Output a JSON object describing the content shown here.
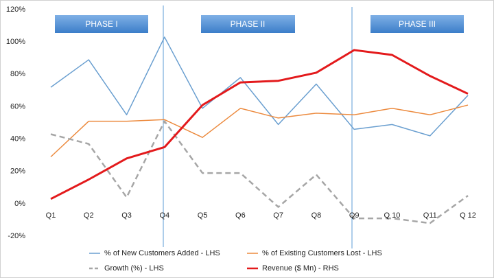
{
  "chart_data": {
    "type": "line",
    "categories": [
      "Q1",
      "Q2",
      "Q3",
      "Q4",
      "Q5",
      "Q6",
      "Q7",
      "Q8",
      "Q9",
      "Q 10",
      "Q11",
      "Q 12"
    ],
    "series": [
      {
        "name": "% of New Customers Added - LHS",
        "color": "#6a9fd0",
        "line_width": 1.5,
        "values": [
          72,
          89,
          55,
          103,
          59,
          78,
          49,
          74,
          46,
          49,
          42,
          67
        ]
      },
      {
        "name": "% of Existing Customers Lost - LHS",
        "color": "#ec8a3e",
        "line_width": 1.5,
        "values": [
          29,
          51,
          51,
          52,
          41,
          59,
          53,
          56,
          55,
          59,
          55,
          61
        ]
      },
      {
        "name": "Growth (%) - LHS",
        "color": "#a6a6a6",
        "line_width": 2.5,
        "dashed": true,
        "values": [
          43,
          37,
          4,
          51,
          19,
          19,
          -2,
          18,
          -9,
          -9,
          -12,
          5
        ]
      },
      {
        "name": "Revenue ($ Mn) - RHS",
        "color": "#e31a1c",
        "line_width": 3,
        "values": [
          3,
          15,
          28,
          35,
          61,
          75,
          76,
          81,
          95,
          92,
          79,
          68
        ]
      }
    ],
    "ylim": [
      -20,
      120
    ],
    "yticks": [
      {
        "value": -20,
        "label": "-20%"
      },
      {
        "value": 0,
        "label": "0%"
      },
      {
        "value": 20,
        "label": "20%"
      },
      {
        "value": 40,
        "label": "40%"
      },
      {
        "value": 60,
        "label": "60%"
      },
      {
        "value": 80,
        "label": "80%"
      },
      {
        "value": 100,
        "label": "100%"
      },
      {
        "value": 120,
        "label": "120%"
      }
    ],
    "phases": [
      "PHASE I",
      "PHASE II",
      "PHASE III"
    ],
    "grid": false
  }
}
